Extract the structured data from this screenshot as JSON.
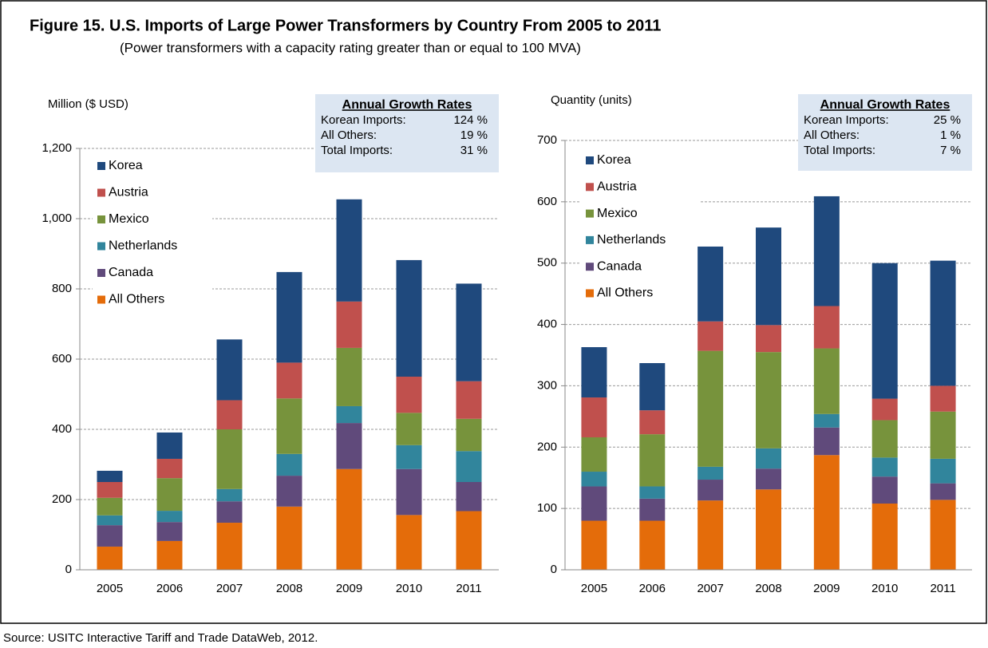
{
  "title": "Figure 15. U.S. Imports of Large Power Transformers by Country From 2005 to 2011",
  "subtitle": "(Power transformers with a capacity rating greater than or equal to 100 MVA)",
  "source": "Source: USITC Interactive Tariff and Trade DataWeb, 2012.",
  "chart_data": [
    {
      "type": "stacked_bar",
      "ylabel": "Million ($ USD)",
      "categories": [
        "2005",
        "2006",
        "2007",
        "2008",
        "2009",
        "2010",
        "2011"
      ],
      "series": [
        {
          "name": "All Others",
          "color": "#e46c0a",
          "values": [
            66,
            82,
            134,
            180,
            287,
            156,
            167
          ]
        },
        {
          "name": "Canada",
          "color": "#604a7b",
          "values": [
            61,
            54,
            61,
            88,
            131,
            131,
            83
          ]
        },
        {
          "name": "Netherlands",
          "color": "#31859c",
          "values": [
            28,
            32,
            35,
            62,
            48,
            68,
            88
          ]
        },
        {
          "name": "Mexico",
          "color": "#77933c",
          "values": [
            50,
            93,
            170,
            158,
            166,
            92,
            92
          ]
        },
        {
          "name": "Austria",
          "color": "#c0504d",
          "values": [
            45,
            55,
            83,
            102,
            132,
            103,
            107
          ]
        },
        {
          "name": "Korea",
          "color": "#1f497d",
          "values": [
            32,
            75,
            173,
            258,
            291,
            332,
            278
          ]
        }
      ],
      "ylim": [
        0,
        1200
      ],
      "yticks": [
        0,
        200,
        400,
        600,
        800,
        {
          "value": 1000,
          "label": "1,000"
        },
        {
          "value": 1200,
          "label": "1,200"
        }
      ],
      "grid": true,
      "legend": "upper left",
      "growth_box": {
        "title": "Annual Growth Rates",
        "rows": [
          [
            "Korean Imports:",
            "124 %"
          ],
          [
            "All Others:",
            "19 %"
          ],
          [
            "Total Imports:",
            "31 %"
          ]
        ]
      }
    },
    {
      "type": "stacked_bar",
      "ylabel": "Quantity (units)",
      "categories": [
        "2005",
        "2006",
        "2007",
        "2008",
        "2009",
        "2010",
        "2011"
      ],
      "series": [
        {
          "name": "All Others",
          "color": "#e46c0a",
          "values": [
            80,
            80,
            113,
            131,
            187,
            108,
            114
          ]
        },
        {
          "name": "Canada",
          "color": "#604a7b",
          "values": [
            56,
            36,
            34,
            34,
            45,
            44,
            27
          ]
        },
        {
          "name": "Netherlands",
          "color": "#31859c",
          "values": [
            24,
            20,
            21,
            33,
            22,
            31,
            40
          ]
        },
        {
          "name": "Mexico",
          "color": "#77933c",
          "values": [
            56,
            85,
            189,
            157,
            107,
            61,
            77
          ]
        },
        {
          "name": "Austria",
          "color": "#c0504d",
          "values": [
            65,
            39,
            48,
            44,
            69,
            35,
            42
          ]
        },
        {
          "name": "Korea",
          "color": "#1f497d",
          "values": [
            82,
            77,
            122,
            159,
            179,
            221,
            204
          ]
        }
      ],
      "ylim": [
        0,
        700
      ],
      "yticks": [
        0,
        100,
        200,
        300,
        400,
        500,
        600,
        700
      ],
      "grid": true,
      "legend": "upper left",
      "growth_box": {
        "title": "Annual Growth Rates",
        "rows": [
          [
            "Korean Imports:",
            "25 %"
          ],
          [
            "All Others:",
            "1 %"
          ],
          [
            "Total Imports:",
            "7 %"
          ]
        ]
      }
    }
  ]
}
